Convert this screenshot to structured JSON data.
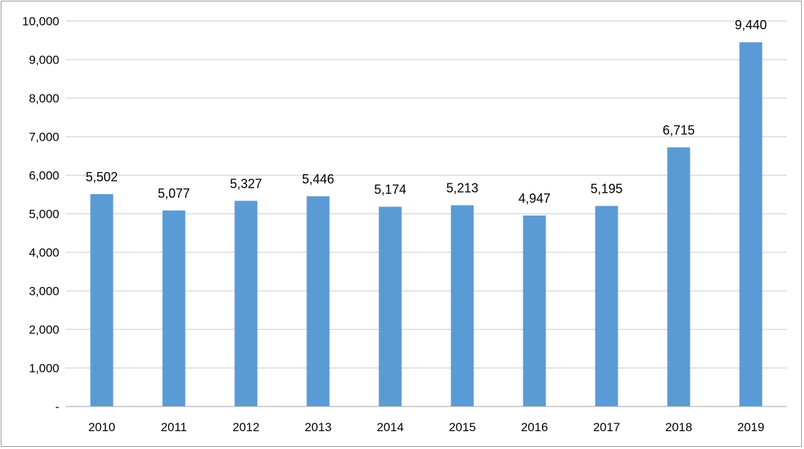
{
  "chart_data": {
    "type": "bar",
    "categories": [
      "2010",
      "2011",
      "2012",
      "2013",
      "2014",
      "2015",
      "2016",
      "2017",
      "2018",
      "2019"
    ],
    "values": [
      5502,
      5077,
      5327,
      5446,
      5174,
      5213,
      4947,
      5195,
      6715,
      9440
    ],
    "data_labels": [
      "5,502",
      "5,077",
      "5,327",
      "5,446",
      "5,174",
      "5,213",
      "4,947",
      "5,195",
      "6,715",
      "9,440"
    ],
    "y_ticks": [
      0,
      1000,
      2000,
      3000,
      4000,
      5000,
      6000,
      7000,
      8000,
      9000,
      10000
    ],
    "y_tick_labels": [
      "-",
      "1,000",
      "2,000",
      "3,000",
      "4,000",
      "5,000",
      "6,000",
      "7,000",
      "8,000",
      "9,000",
      "10,000"
    ],
    "ylim": [
      0,
      10000
    ],
    "grid": true,
    "legend": "none",
    "title": "",
    "xlabel": "",
    "ylabel": "",
    "bar_color": "#5b9bd5",
    "grid_color": "#d9d9d9",
    "axis_color": "#bfbfbf"
  }
}
